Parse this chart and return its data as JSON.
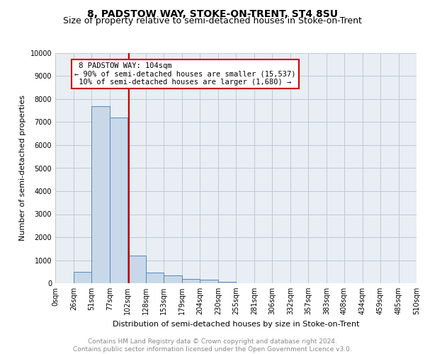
{
  "title": "8, PADSTOW WAY, STOKE-ON-TRENT, ST4 8SU",
  "subtitle": "Size of property relative to semi-detached houses in Stoke-on-Trent",
  "xlabel": "Distribution of semi-detached houses by size in Stoke-on-Trent",
  "ylabel": "Number of semi-detached properties",
  "footer": "Contains HM Land Registry data © Crown copyright and database right 2024.\nContains public sector information licensed under the Open Government Licence v3.0.",
  "bar_labels": [
    "0sqm",
    "26sqm",
    "51sqm",
    "77sqm",
    "102sqm",
    "128sqm",
    "153sqm",
    "179sqm",
    "204sqm",
    "230sqm",
    "255sqm",
    "281sqm",
    "306sqm",
    "332sqm",
    "357sqm",
    "383sqm",
    "408sqm",
    "434sqm",
    "459sqm",
    "485sqm",
    "510sqm"
  ],
  "bar_edges": [
    0,
    26,
    51,
    77,
    102,
    128,
    153,
    179,
    204,
    230,
    255,
    281,
    306,
    332,
    357,
    383,
    408,
    434,
    459,
    485,
    510
  ],
  "bar_heights": [
    0,
    500,
    7700,
    7200,
    1200,
    450,
    330,
    180,
    150,
    50,
    0,
    0,
    0,
    0,
    0,
    0,
    0,
    0,
    0,
    0
  ],
  "bar_color": "#c8d8e8",
  "bar_edgecolor": "#5588bb",
  "property_size": 104,
  "property_label": "8 PADSTOW WAY: 104sqm",
  "pct_smaller": 90,
  "n_smaller": "15,537",
  "pct_larger": 10,
  "n_larger": "1,680",
  "vline_color": "#cc0000",
  "annotation_box_color": "#cc0000",
  "ylim": [
    0,
    10000
  ],
  "yticks": [
    0,
    1000,
    2000,
    3000,
    4000,
    5000,
    6000,
    7000,
    8000,
    9000,
    10000
  ],
  "grid_color": "#c0c8d0",
  "bg_color": "#e8eef4",
  "title_fontsize": 10,
  "subtitle_fontsize": 9,
  "axis_fontsize": 8,
  "tick_fontsize": 7,
  "footer_fontsize": 6.5,
  "annotation_fontsize": 7.5
}
